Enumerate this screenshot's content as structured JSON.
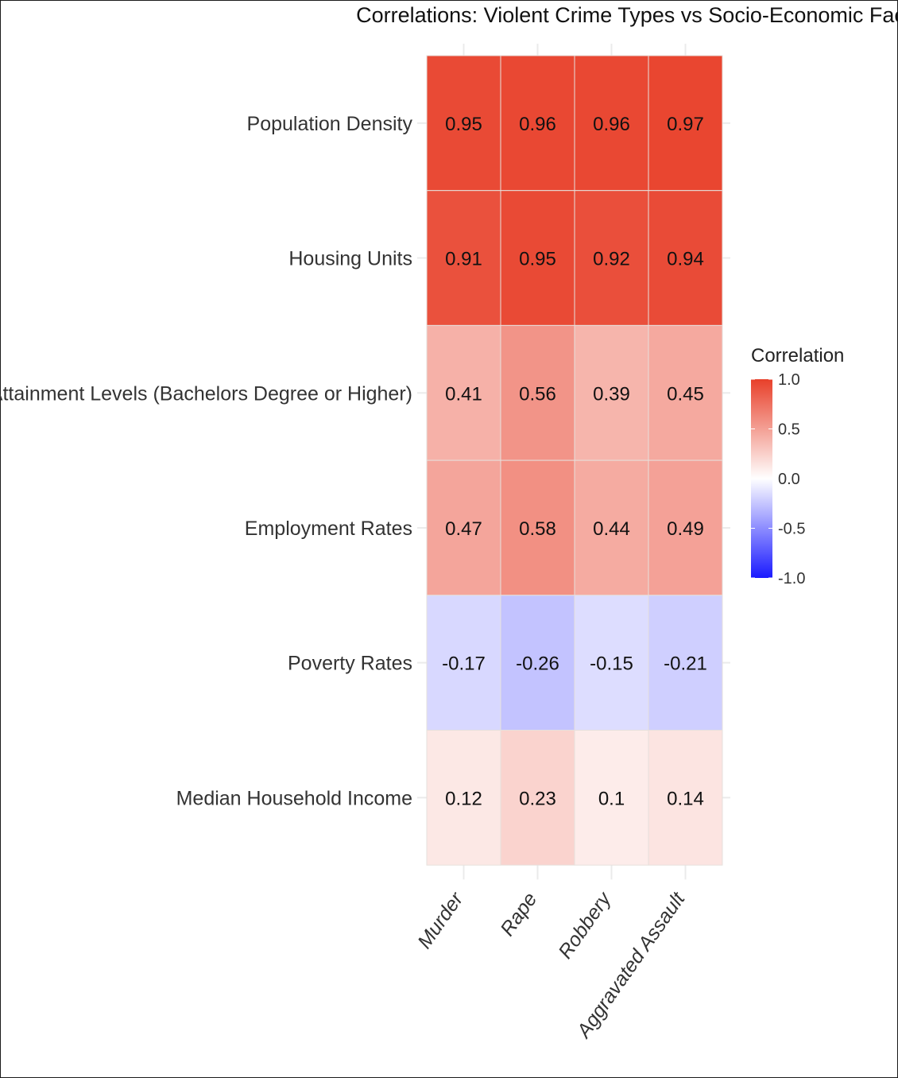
{
  "chart_data": {
    "type": "heatmap",
    "title": "Correlations: Violent Crime Types vs Socio-Economic Factors",
    "xlabel": "",
    "ylabel": "",
    "x_categories": [
      "Murder",
      "Rape",
      "Robbery",
      "Aggravated Assault"
    ],
    "y_categories": [
      "Population Density",
      "Housing Units",
      "Educational Attainment Levels (Bachelors Degree or Higher)",
      "Employment Rates",
      "Poverty Rates",
      "Median Household Income"
    ],
    "values": [
      [
        0.95,
        0.96,
        0.96,
        0.97
      ],
      [
        0.91,
        0.95,
        0.92,
        0.94
      ],
      [
        0.41,
        0.56,
        0.39,
        0.45
      ],
      [
        0.47,
        0.58,
        0.44,
        0.49
      ],
      [
        -0.17,
        -0.26,
        -0.15,
        -0.21
      ],
      [
        0.12,
        0.23,
        0.1,
        0.14
      ]
    ],
    "value_labels": [
      [
        "0.95",
        "0.96",
        "0.96",
        "0.97"
      ],
      [
        "0.91",
        "0.95",
        "0.92",
        "0.94"
      ],
      [
        "0.41",
        "0.56",
        "0.39",
        "0.45"
      ],
      [
        "0.47",
        "0.58",
        "0.44",
        "0.49"
      ],
      [
        "-0.17",
        "-0.26",
        "-0.15",
        "-0.21"
      ],
      [
        "0.12",
        "0.23",
        "0.1",
        "0.14"
      ]
    ],
    "color_scale": {
      "low": "#1a1aff",
      "mid": "#ffffff",
      "high": "#e8402a",
      "limits": [
        -1,
        1
      ]
    },
    "legend": {
      "title": "Correlation",
      "ticks": [
        "1.0",
        "0.5",
        "0.0",
        "-0.5",
        "-1.0"
      ],
      "placement": "right"
    }
  }
}
